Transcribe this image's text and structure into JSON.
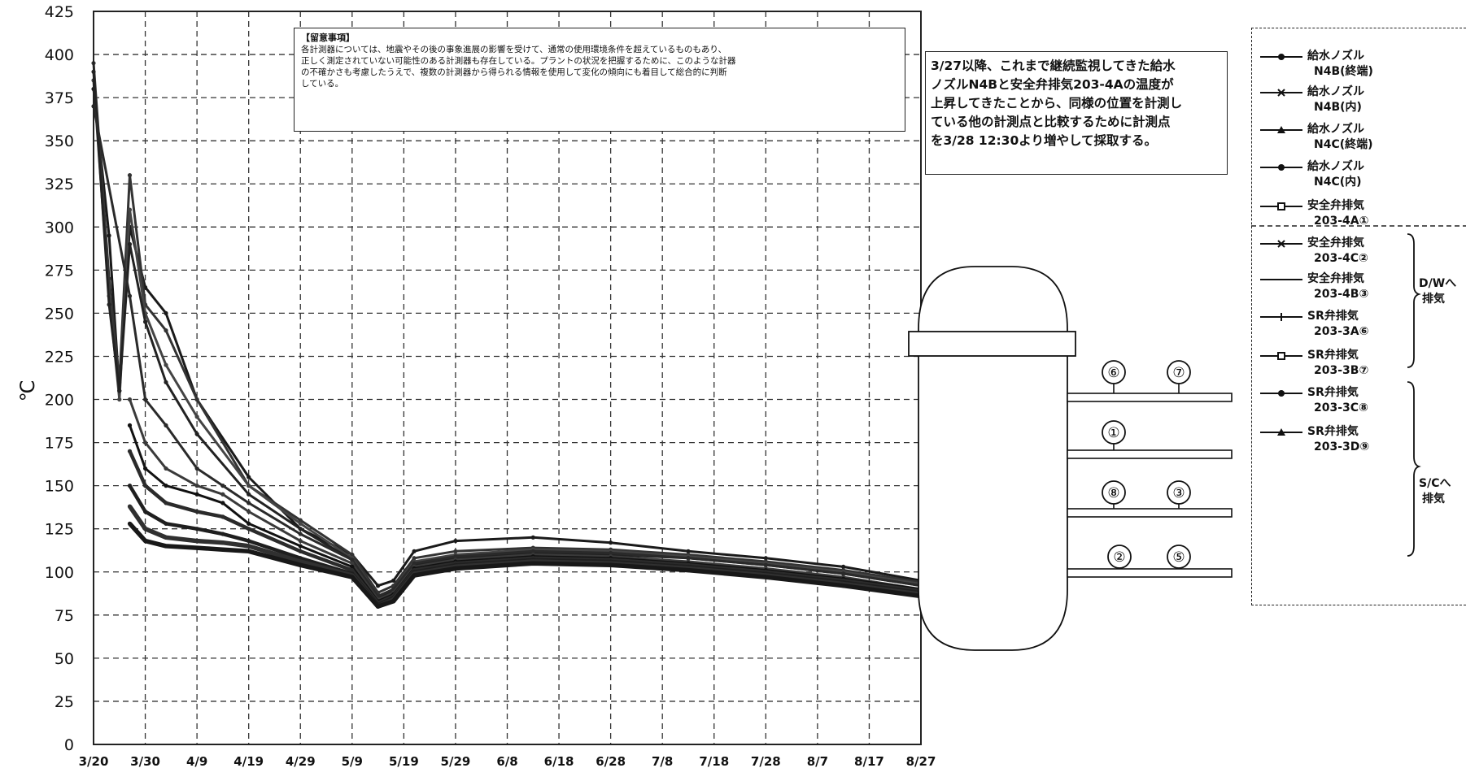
{
  "chart_data": {
    "type": "line",
    "ylabel": "℃",
    "ylim": [
      0,
      425
    ],
    "yticks": [
      "0",
      "25",
      "50",
      "75",
      "100",
      "125",
      "150",
      "175",
      "200",
      "225",
      "250",
      "275",
      "300",
      "325",
      "350",
      "375",
      "400",
      "425"
    ],
    "xticks": [
      "3/20",
      "3/30",
      "4/9",
      "4/19",
      "4/29",
      "5/9",
      "5/19",
      "5/29",
      "6/8",
      "6/18",
      "6/28",
      "7/8",
      "7/18",
      "7/28",
      "8/7",
      "8/17",
      "8/27"
    ],
    "grid": true,
    "note": {
      "title": "【留意事項】",
      "lines": [
        "各計測器については、地震やその後の事象進展の影響を受けて、通常の使用環境条件を超えているものもあり、",
        "正しく測定されていない可能性のある計測器も存在している。プラントの状況を把握するために、このような計器",
        "の不確かさも考慮したうえで、複数の計測器から得られる情報を使用して変化の傾向にも着目して総合的に判断",
        "している。"
      ]
    },
    "annotation": {
      "lines": [
        "3/27以降、これまで継続監視してきた給水",
        "ノズルN4Bと安全弁排気203-4Aの温度が",
        "上昇してきたことから、同様の位置を計測し",
        "ている他の計測点と比較するために計測点",
        "を3/28 12:30より増やして採取する。"
      ]
    },
    "series": [
      {
        "name": "給水ノズル N4B(終端)",
        "label1": "給水ノズル",
        "label2": "N4B(終端)",
        "color": "#1a1a1a",
        "marker": "dot",
        "x": [
          0,
          3,
          5,
          7,
          10,
          14,
          20,
          30,
          40,
          50,
          55,
          58,
          62,
          70,
          85,
          100,
          115,
          130,
          145,
          160
        ],
        "y": [
          380,
          295,
          205,
          300,
          265,
          250,
          200,
          155,
          125,
          110,
          92,
          95,
          112,
          118,
          120,
          117,
          112,
          108,
          103,
          95
        ]
      },
      {
        "name": "給水ノズル N4B(内)",
        "label1": "給水ノズル",
        "label2": "N4B(内)",
        "color": "#333",
        "marker": "x",
        "x": [
          0,
          3,
          5,
          7,
          10,
          14,
          20,
          30,
          40,
          50,
          55,
          58,
          62,
          70,
          85,
          100,
          115,
          130,
          145,
          160
        ],
        "y": [
          395,
          270,
          210,
          330,
          255,
          240,
          200,
          150,
          130,
          110,
          88,
          92,
          108,
          112,
          114,
          113,
          110,
          106,
          101,
          94
        ]
      },
      {
        "name": "給水ノズル N4C(終端)",
        "label1": "給水ノズル",
        "label2": "N4C(終端)",
        "color": "#444",
        "marker": "tri",
        "x": [
          0,
          3,
          5,
          7,
          10,
          14,
          20,
          30,
          40,
          50,
          55,
          58,
          62,
          70,
          85,
          100,
          115,
          130,
          145,
          160
        ],
        "y": [
          385,
          260,
          200,
          310,
          250,
          220,
          190,
          150,
          128,
          108,
          86,
          90,
          106,
          110,
          113,
          112,
          109,
          105,
          100,
          93
        ]
      },
      {
        "name": "給水ノズル N4C(内)",
        "label1": "給水ノズル",
        "label2": "N4C(内)",
        "color": "#222",
        "marker": "dot",
        "x": [
          0,
          3,
          5,
          7,
          10,
          14,
          20,
          30,
          40,
          50,
          55,
          58,
          62,
          70,
          85,
          100,
          115,
          130,
          145,
          160
        ],
        "y": [
          390,
          255,
          205,
          290,
          245,
          210,
          180,
          145,
          125,
          107,
          85,
          89,
          104,
          108,
          111,
          110,
          108,
          104,
          99,
          92
        ]
      },
      {
        "name": "安全弁排気 203-4A①",
        "label1": "安全弁排気",
        "label2": "203-4A①",
        "color": "#2a2a2a",
        "marker": "sq",
        "x": [
          0,
          7,
          10,
          14,
          20,
          25,
          30,
          40,
          50,
          55,
          58,
          62,
          70,
          85,
          100,
          115,
          130,
          145,
          160
        ],
        "y": [
          370,
          260,
          200,
          185,
          160,
          150,
          140,
          122,
          107,
          86,
          90,
          105,
          109,
          112,
          111,
          108,
          104,
          99,
          92
        ]
      },
      {
        "name": "安全弁排気 203-4C②",
        "label1": "安全弁排気",
        "label2": "203-4C②",
        "color": "#3a3a3a",
        "marker": "x",
        "x": [
          7,
          10,
          14,
          20,
          25,
          30,
          40,
          50,
          55,
          58,
          62,
          70,
          85,
          100,
          115,
          130,
          145,
          160
        ],
        "y": [
          200,
          175,
          160,
          150,
          145,
          135,
          118,
          105,
          84,
          88,
          103,
          107,
          110,
          109,
          106,
          102,
          97,
          90
        ]
      },
      {
        "name": "安全弁排気 203-4B③",
        "label1": "安全弁排気",
        "label2": "203-4B③",
        "color": "#111",
        "marker": "none",
        "x": [
          7,
          10,
          14,
          20,
          25,
          30,
          40,
          50,
          55,
          58,
          62,
          70,
          85,
          100,
          115,
          130,
          145,
          160
        ],
        "y": [
          185,
          160,
          150,
          145,
          140,
          128,
          115,
          103,
          83,
          87,
          102,
          106,
          109,
          108,
          105,
          101,
          96,
          90
        ]
      },
      {
        "name": "SR弁排気 203-3A⑥",
        "label1": "SR弁排気",
        "label2": "203-3A⑥",
        "color": "#2b2b2b",
        "marker": "plus",
        "x": [
          7,
          10,
          14,
          20,
          25,
          30,
          40,
          50,
          55,
          58,
          62,
          70,
          85,
          100,
          115,
          130,
          145,
          160
        ],
        "y": [
          170,
          150,
          140,
          135,
          132,
          125,
          112,
          101,
          82,
          86,
          101,
          105,
          108,
          107,
          104,
          100,
          95,
          89
        ]
      },
      {
        "name": "SR弁排気 203-3B⑦",
        "label1": "SR弁排気",
        "label2": "203-3B⑦",
        "color": "#1f1f1f",
        "marker": "sq",
        "x": [
          7,
          10,
          14,
          20,
          25,
          30,
          40,
          50,
          55,
          58,
          62,
          70,
          85,
          100,
          115,
          130,
          145,
          160
        ],
        "y": [
          150,
          135,
          128,
          125,
          122,
          118,
          108,
          99,
          81,
          85,
          100,
          104,
          107,
          106,
          103,
          99,
          94,
          88
        ]
      },
      {
        "name": "SR弁排気 203-3C⑧",
        "label1": "SR弁排気",
        "label2": "203-3C⑧",
        "color": "#303030",
        "marker": "dot",
        "x": [
          7,
          10,
          14,
          20,
          25,
          30,
          40,
          50,
          55,
          58,
          62,
          70,
          85,
          100,
          115,
          130,
          145,
          160
        ],
        "y": [
          138,
          125,
          120,
          118,
          117,
          115,
          106,
          98,
          80,
          84,
          99,
          103,
          106,
          105,
          102,
          98,
          93,
          87
        ]
      },
      {
        "name": "SR弁排気 203-3D⑨",
        "label1": "SR弁排気",
        "label2": "203-3D⑨",
        "color": "#181818",
        "marker": "tri",
        "x": [
          7,
          10,
          14,
          20,
          25,
          30,
          40,
          50,
          55,
          58,
          62,
          70,
          85,
          100,
          115,
          130,
          145,
          160
        ],
        "y": [
          128,
          118,
          115,
          114,
          113,
          112,
          104,
          97,
          80,
          83,
          98,
          102,
          105,
          104,
          101,
          97,
          92,
          86
        ]
      }
    ]
  },
  "legend_groups": {
    "dw": {
      "label1": "D/Wへ",
      "label2": "排気"
    },
    "sc": {
      "label1": "S/Cへ",
      "label2": "排気"
    }
  },
  "vessel": {
    "markers": [
      "⑥",
      "⑦",
      "①",
      "⑧",
      "③",
      "②",
      "⑤"
    ]
  }
}
